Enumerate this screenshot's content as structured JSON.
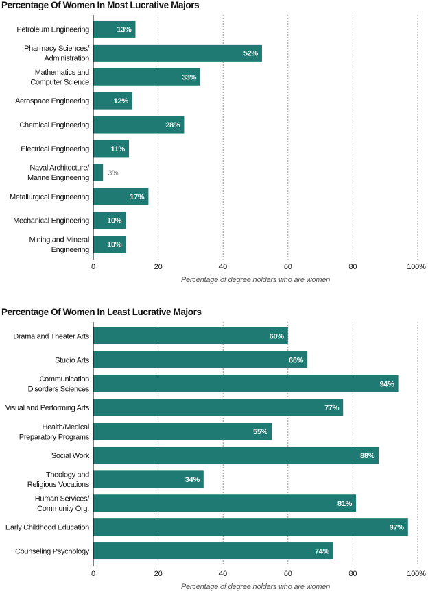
{
  "chart_data": [
    {
      "type": "bar",
      "orientation": "horizontal",
      "title": "Percentage Of Women In Most Lucrative Majors",
      "xlabel": "Percentage of degree holders who are women",
      "ylabel": "",
      "xlim": [
        0,
        100
      ],
      "x_ticks": [
        "0",
        "20",
        "40",
        "60",
        "80",
        "100%"
      ],
      "grid": "vertical dotted",
      "bar_color": "#1f7a73",
      "value_format": "percent",
      "categories": [
        [
          "Petroleum Engineering"
        ],
        [
          "Pharmacy Sciences/",
          "Administration"
        ],
        [
          "Mathematics and",
          "Computer Science"
        ],
        [
          "Aerospace Engineering"
        ],
        [
          "Chemical Engineering"
        ],
        [
          "Electrical Engineering"
        ],
        [
          "Naval Architecture/",
          "Marine Engineering"
        ],
        [
          "Metallurgical Engineering"
        ],
        [
          "Mechanical Engineering"
        ],
        [
          "Mining and Mineral",
          "Engineering"
        ]
      ],
      "values": [
        13,
        52,
        33,
        12,
        28,
        11,
        3,
        17,
        10,
        10
      ]
    },
    {
      "type": "bar",
      "orientation": "horizontal",
      "title": "Percentage Of Women In Least Lucrative Majors",
      "xlabel": "Percentage of degree holders who are women",
      "ylabel": "",
      "xlim": [
        0,
        100
      ],
      "x_ticks": [
        "0",
        "20",
        "40",
        "60",
        "80",
        "100%"
      ],
      "grid": "vertical dotted",
      "bar_color": "#1f7a73",
      "value_format": "percent",
      "categories": [
        [
          "Drama and Theater Arts"
        ],
        [
          "Studio Arts"
        ],
        [
          "Communication",
          "Disorders Sciences"
        ],
        [
          "Visual and Performing Arts"
        ],
        [
          "Health/Medical",
          "Preparatory Programs"
        ],
        [
          "Social Work"
        ],
        [
          "Theology and",
          "Religious Vocations"
        ],
        [
          "Human Services/",
          "Community Org."
        ],
        [
          "Early Childhood Education"
        ],
        [
          "Counseling Psychology"
        ]
      ],
      "values": [
        60,
        66,
        94,
        77,
        55,
        88,
        34,
        81,
        97,
        74
      ]
    }
  ]
}
